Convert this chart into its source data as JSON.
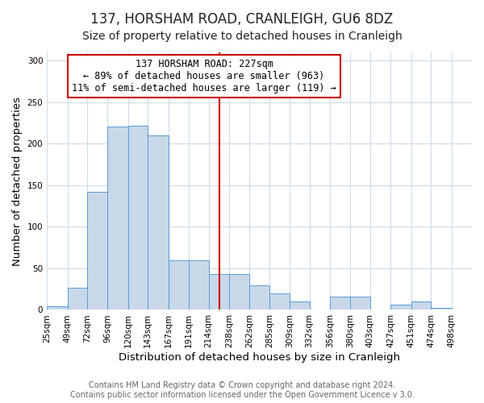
{
  "title": "137, HORSHAM ROAD, CRANLEIGH, GU6 8DZ",
  "subtitle": "Size of property relative to detached houses in Cranleigh",
  "xlabel": "Distribution of detached houses by size in Cranleigh",
  "ylabel": "Number of detached properties",
  "bar_left_edges": [
    25,
    49,
    72,
    96,
    120,
    143,
    167,
    191,
    214,
    238,
    262,
    285,
    309,
    332,
    356,
    380,
    403,
    427,
    451,
    474
  ],
  "bar_heights": [
    4,
    27,
    142,
    221,
    222,
    210,
    60,
    60,
    43,
    43,
    30,
    20,
    10,
    0,
    16,
    16,
    0,
    6,
    10,
    2
  ],
  "bar_widths": [
    24,
    23,
    24,
    24,
    23,
    24,
    24,
    23,
    24,
    24,
    23,
    24,
    23,
    24,
    24,
    23,
    24,
    24,
    23,
    24
  ],
  "bar_color": "#c8d8e8",
  "bar_edgecolor": "#5b9bd5",
  "vline_x": 227,
  "vline_color": "#cc0000",
  "annotation_text": "137 HORSHAM ROAD: 227sqm\n← 89% of detached houses are smaller (963)\n11% of semi-detached houses are larger (119) →",
  "annotation_box_edgecolor": "#cc0000",
  "ylim": [
    0,
    310
  ],
  "yticks": [
    0,
    50,
    100,
    150,
    200,
    250,
    300
  ],
  "xtick_labels": [
    "25sqm",
    "49sqm",
    "72sqm",
    "96sqm",
    "120sqm",
    "143sqm",
    "167sqm",
    "191sqm",
    "214sqm",
    "238sqm",
    "262sqm",
    "285sqm",
    "309sqm",
    "332sqm",
    "356sqm",
    "380sqm",
    "403sqm",
    "427sqm",
    "451sqm",
    "474sqm",
    "498sqm"
  ],
  "xtick_positions": [
    25,
    49,
    72,
    96,
    120,
    143,
    167,
    191,
    214,
    238,
    262,
    285,
    309,
    332,
    356,
    380,
    403,
    427,
    451,
    474,
    498
  ],
  "footer_text": "Contains HM Land Registry data © Crown copyright and database right 2024.\nContains public sector information licensed under the Open Government Licence v 3.0.",
  "bg_color": "#ffffff",
  "plot_bg_color": "#ffffff",
  "grid_color": "#d0dce8",
  "title_fontsize": 12,
  "subtitle_fontsize": 10,
  "axis_label_fontsize": 9.5,
  "tick_fontsize": 7.5,
  "footer_fontsize": 7,
  "annotation_fontsize": 8.5
}
